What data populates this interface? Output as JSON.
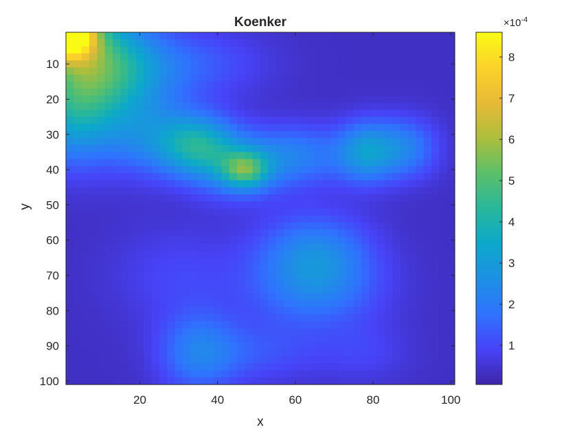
{
  "chart_data": {
    "type": "heatmap",
    "title": "Koenker",
    "xlabel": "x",
    "ylabel": "y",
    "xlim": [
      1,
      101
    ],
    "ylim": [
      1,
      101
    ],
    "y_reversed": true,
    "xticks": [
      20,
      40,
      60,
      80,
      100
    ],
    "yticks": [
      10,
      20,
      30,
      40,
      50,
      60,
      70,
      80,
      90,
      100
    ],
    "colorbar": {
      "exponent_label": "×10",
      "exponent_power": "-4",
      "range": [
        0.05,
        8.6
      ],
      "ticks": [
        1,
        2,
        3,
        4,
        5,
        6,
        7,
        8
      ]
    },
    "colormap": [
      "#3e26a8",
      "#4743f8",
      "#2f73fe",
      "#1e90e4",
      "#0ca8cb",
      "#29b79a",
      "#5bbf6a",
      "#adbe3c",
      "#e7ba37",
      "#fcd22a",
      "#f9fb15"
    ],
    "background": 0.35,
    "blobs": [
      {
        "x": 1,
        "y": 1,
        "value": 8.5,
        "sx": 5,
        "sy": 5
      },
      {
        "x": 6,
        "y": 8,
        "value": 3.5,
        "sx": 10,
        "sy": 12
      },
      {
        "x": 3,
        "y": 25,
        "value": 2.2,
        "sx": 8,
        "sy": 10
      },
      {
        "x": 16,
        "y": 12,
        "value": 1.6,
        "sx": 10,
        "sy": 8
      },
      {
        "x": 35,
        "y": 10,
        "value": 0.9,
        "sx": 12,
        "sy": 7
      },
      {
        "x": 22,
        "y": 30,
        "value": 1.6,
        "sx": 8,
        "sy": 8
      },
      {
        "x": 35,
        "y": 33,
        "value": 3.2,
        "sx": 7,
        "sy": 6
      },
      {
        "x": 47,
        "y": 40,
        "value": 2.9,
        "sx": 4,
        "sy": 3.5
      },
      {
        "x": 45,
        "y": 40,
        "value": 1.6,
        "sx": 8,
        "sy": 6
      },
      {
        "x": 60,
        "y": 36,
        "value": 1.7,
        "sx": 10,
        "sy": 6
      },
      {
        "x": 78,
        "y": 35,
        "value": 2.2,
        "sx": 5,
        "sy": 6
      },
      {
        "x": 88,
        "y": 34,
        "value": 1.8,
        "sx": 6,
        "sy": 6
      },
      {
        "x": 65,
        "y": 64,
        "value": 1.9,
        "sx": 10,
        "sy": 8
      },
      {
        "x": 65,
        "y": 75,
        "value": 1.3,
        "sx": 12,
        "sy": 8
      },
      {
        "x": 35,
        "y": 92,
        "value": 1.6,
        "sx": 7,
        "sy": 8
      },
      {
        "x": 50,
        "y": 92,
        "value": 0.8,
        "sx": 12,
        "sy": 6
      },
      {
        "x": 30,
        "y": 70,
        "value": 0.6,
        "sx": 12,
        "sy": 10
      },
      {
        "x": 78,
        "y": 92,
        "value": 0.5,
        "sx": 8,
        "sy": 6
      }
    ]
  }
}
